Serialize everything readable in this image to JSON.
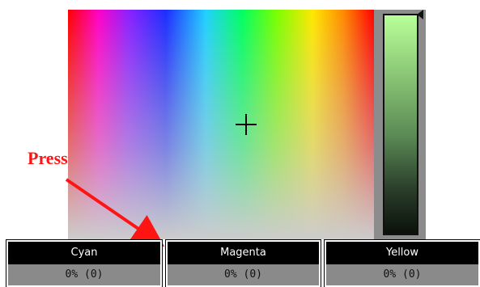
{
  "annotation": {
    "press_label": "Press",
    "color": "#ff1414"
  },
  "picker": {
    "crosshair": "crosshair-icon",
    "brightness_top_color": "#b8ff98",
    "brightness_bottom_color": "#0b110b"
  },
  "channels": [
    {
      "name": "Cyan",
      "value": "0% (0)"
    },
    {
      "name": "Magenta",
      "value": "0% (0)"
    },
    {
      "name": "Yellow",
      "value": "0% (0)"
    }
  ]
}
